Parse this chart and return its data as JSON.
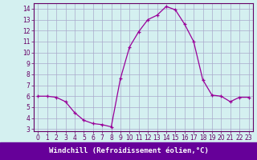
{
  "x": [
    0,
    1,
    2,
    3,
    4,
    5,
    6,
    7,
    8,
    9,
    10,
    11,
    12,
    13,
    14,
    15,
    16,
    17,
    18,
    19,
    20,
    21,
    22,
    23
  ],
  "y": [
    6.0,
    6.0,
    5.9,
    5.5,
    4.5,
    3.8,
    3.5,
    3.4,
    3.2,
    7.6,
    10.5,
    11.9,
    13.0,
    13.4,
    14.2,
    13.9,
    12.6,
    11.0,
    7.5,
    6.1,
    6.0,
    5.5,
    5.9,
    5.9
  ],
  "line_color": "#990099",
  "marker": "+",
  "marker_size": 3,
  "background_color": "#d4f0f0",
  "grid_color": "#aaaacc",
  "xlabel": "Windchill (Refroidissement éolien,°C)",
  "xlabel_color": "#ffffff",
  "xlabel_bg": "#660099",
  "xlim": [
    -0.5,
    23.5
  ],
  "ylim": [
    2.8,
    14.5
  ],
  "yticks": [
    3,
    4,
    5,
    6,
    7,
    8,
    9,
    10,
    11,
    12,
    13,
    14
  ],
  "xticks": [
    0,
    1,
    2,
    3,
    4,
    5,
    6,
    7,
    8,
    9,
    10,
    11,
    12,
    13,
    14,
    15,
    16,
    17,
    18,
    19,
    20,
    21,
    22,
    23
  ],
  "tick_color": "#660066",
  "spine_color": "#660066",
  "tick_fontsize": 5.5,
  "xlabel_fontsize": 6.5
}
